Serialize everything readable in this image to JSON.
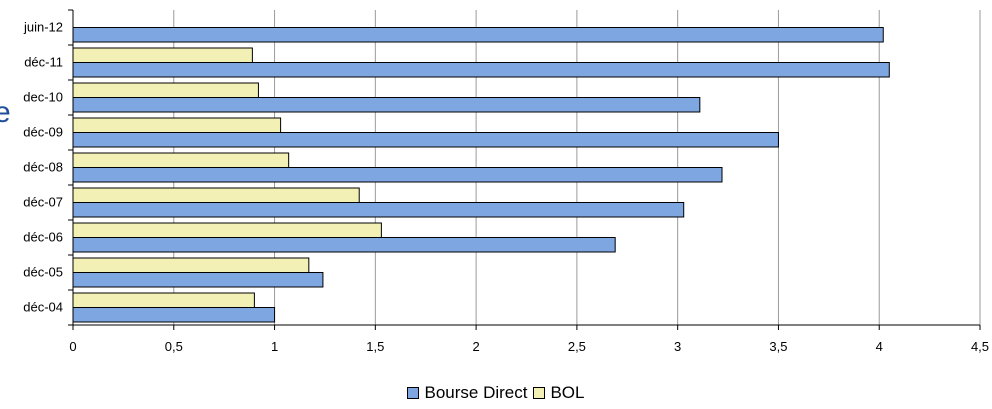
{
  "chart_data": {
    "type": "bar",
    "orientation": "horizontal",
    "categories": [
      "déc-04",
      "déc-05",
      "déc-06",
      "déc-07",
      "déc-08",
      "déc-09",
      "dec-10",
      "déc-11",
      "juin-12"
    ],
    "series": [
      {
        "name": "Bourse Direct",
        "color": "#7ea6e0",
        "values": [
          1.0,
          1.24,
          2.69,
          3.03,
          3.22,
          3.5,
          3.11,
          4.05,
          4.02
        ]
      },
      {
        "name": "BOL",
        "color": "#f2f0b4",
        "values": [
          0.9,
          1.17,
          1.53,
          1.42,
          1.07,
          1.03,
          0.92,
          0.89,
          null
        ]
      }
    ],
    "xlim": [
      0,
      4.5
    ],
    "xticks": [
      "0",
      "0,5",
      "1",
      "1,5",
      "2",
      "2,5",
      "3",
      "3,5",
      "4",
      "4,5"
    ],
    "grid": true,
    "legend_position": "bottom"
  },
  "edge_glyph": "e"
}
